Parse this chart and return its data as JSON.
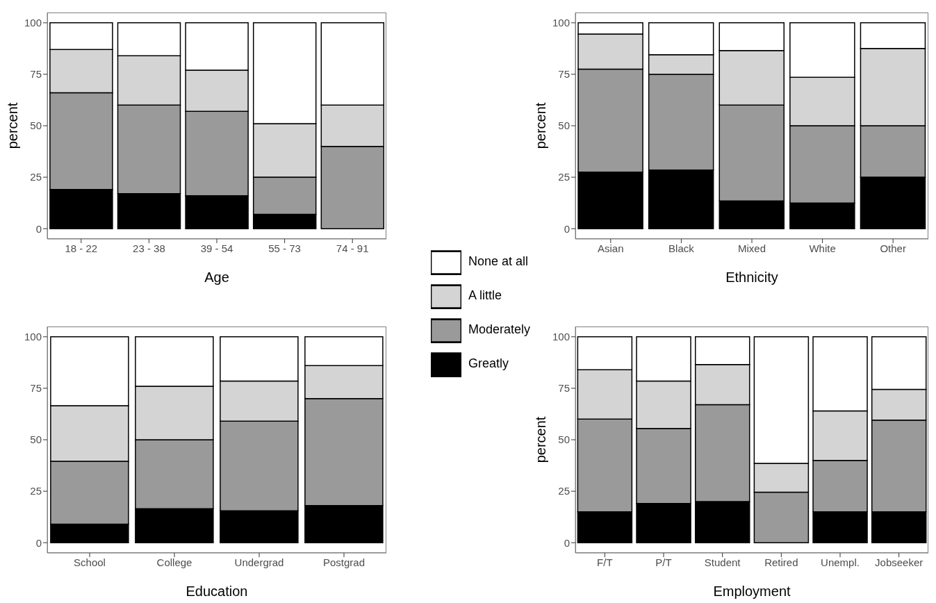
{
  "chart_data": [
    {
      "type": "bar",
      "stacked": true,
      "xlabel": "Age",
      "ylabel": "percent",
      "categories": [
        "18 - 22",
        "23 - 38",
        "39 - 54",
        "55 - 73",
        "74 - 91"
      ],
      "ylim": [
        -5,
        105
      ],
      "yticks": [
        0,
        25,
        50,
        75,
        100
      ],
      "legend": "right",
      "series": [
        {
          "name": "Greatly",
          "color": "#000000",
          "values": [
            19,
            17,
            16,
            7,
            0
          ]
        },
        {
          "name": "Moderately",
          "color": "#9a9a9a",
          "values": [
            47,
            43,
            41,
            18,
            40
          ]
        },
        {
          "name": "A little",
          "color": "#d4d4d4",
          "values": [
            21,
            24,
            20,
            26,
            20
          ]
        },
        {
          "name": "None at all",
          "color": "#ffffff",
          "values": [
            13,
            16,
            23,
            49,
            40
          ]
        }
      ]
    },
    {
      "type": "bar",
      "stacked": true,
      "xlabel": "Ethnicity",
      "ylabel": "percent",
      "categories": [
        "Asian",
        "Black",
        "Mixed",
        "White",
        "Other"
      ],
      "ylim": [
        -5,
        105
      ],
      "yticks": [
        0,
        25,
        50,
        75,
        100
      ],
      "series": [
        {
          "color": "#000000",
          "values": [
            27.5,
            28.5,
            13.5,
            12.5,
            25
          ]
        },
        {
          "color": "#9a9a9a",
          "values": [
            50,
            46.5,
            46.5,
            37.5,
            25
          ]
        },
        {
          "color": "#d4d4d4",
          "values": [
            17,
            9.5,
            26.5,
            23.5,
            37.5
          ]
        },
        {
          "color": "#ffffff",
          "values": [
            5.5,
            15.5,
            13.5,
            26.5,
            12.5
          ]
        }
      ]
    },
    {
      "type": "bar",
      "stacked": true,
      "xlabel": "Education",
      "categories": [
        "School",
        "College",
        "Undergrad",
        "Postgrad"
      ],
      "ylim": [
        -5,
        105
      ],
      "yticks": [
        0,
        25,
        50,
        75,
        100
      ],
      "series": [
        {
          "color": "#000000",
          "values": [
            9,
            16.5,
            15.5,
            18
          ]
        },
        {
          "color": "#9a9a9a",
          "values": [
            30.5,
            33.5,
            43.5,
            52
          ]
        },
        {
          "color": "#d4d4d4",
          "values": [
            27,
            26,
            19.5,
            16
          ]
        },
        {
          "color": "#ffffff",
          "values": [
            33.5,
            24,
            21.5,
            14
          ]
        }
      ]
    },
    {
      "type": "bar",
      "stacked": true,
      "xlabel": "Employment",
      "ylabel": "percent",
      "categories": [
        "F/T",
        "P/T",
        "Student",
        "Retired",
        "Unempl.",
        "Jobseeker"
      ],
      "ylim": [
        -5,
        105
      ],
      "yticks": [
        0,
        25,
        50,
        75,
        100
      ],
      "series": [
        {
          "color": "#000000",
          "values": [
            15,
            19,
            20,
            0,
            15,
            15
          ]
        },
        {
          "color": "#9a9a9a",
          "values": [
            45,
            36.5,
            47,
            24.5,
            25,
            44.5
          ]
        },
        {
          "color": "#d4d4d4",
          "values": [
            24,
            23,
            19.5,
            14,
            24,
            15
          ]
        },
        {
          "color": "#ffffff",
          "values": [
            16,
            21.5,
            13.5,
            61.5,
            36,
            25.5
          ]
        }
      ]
    }
  ]
}
